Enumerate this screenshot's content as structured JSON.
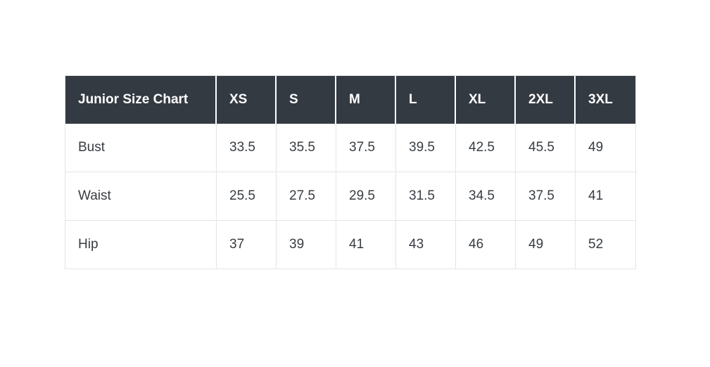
{
  "table": {
    "header": [
      "Junior Size Chart",
      "XS",
      "S",
      "M",
      "L",
      "XL",
      "2XL",
      "3XL"
    ],
    "rows": [
      {
        "label": "Bust",
        "values": [
          "33.5",
          "35.5",
          "37.5",
          "39.5",
          "42.5",
          "45.5",
          "49"
        ]
      },
      {
        "label": "Waist",
        "values": [
          "25.5",
          "27.5",
          "29.5",
          "31.5",
          "34.5",
          "37.5",
          "41"
        ]
      },
      {
        "label": "Hip",
        "values": [
          "37",
          "39",
          "41",
          "43",
          "46",
          "49",
          "52"
        ]
      }
    ]
  },
  "colors": {
    "header_bg": "#343a42",
    "header_text": "#ffffff",
    "body_text": "#383d42",
    "border": "#e3e5e6",
    "page_bg": "#ffffff"
  },
  "chart_data": {
    "type": "table",
    "title": "Junior Size Chart",
    "columns": [
      "XS",
      "S",
      "M",
      "L",
      "XL",
      "2XL",
      "3XL"
    ],
    "rows": [
      {
        "measurement": "Bust",
        "values": [
          33.5,
          35.5,
          37.5,
          39.5,
          42.5,
          45.5,
          49
        ]
      },
      {
        "measurement": "Waist",
        "values": [
          25.5,
          27.5,
          29.5,
          31.5,
          34.5,
          37.5,
          41
        ]
      },
      {
        "measurement": "Hip",
        "values": [
          37,
          39,
          41,
          43,
          46,
          49,
          52
        ]
      }
    ]
  }
}
